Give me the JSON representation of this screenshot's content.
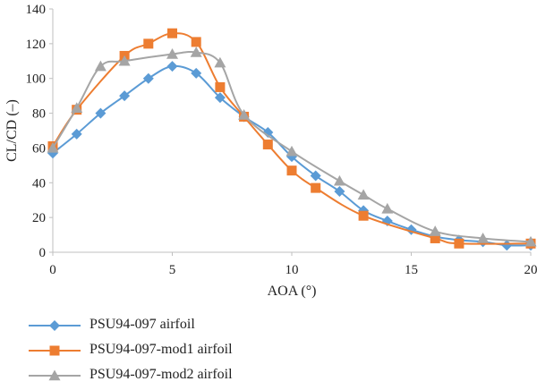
{
  "chart_data": {
    "type": "line",
    "xlabel": "AOA (°)",
    "ylabel": "CL/CD (–)",
    "xlim": [
      0,
      20
    ],
    "ylim": [
      0,
      140
    ],
    "xticks": [
      0,
      5,
      10,
      15,
      20
    ],
    "yticks": [
      0,
      20,
      40,
      60,
      80,
      100,
      120,
      140
    ],
    "grid": false,
    "legend_position": "bottom-left",
    "series": [
      {
        "name": "PSU94-097 airfoil",
        "color": "#5b9bd5",
        "marker": "diamond",
        "x": [
          0,
          1,
          2,
          3,
          4,
          5,
          6,
          7,
          8,
          9,
          10,
          11,
          12,
          13,
          14,
          15,
          16,
          17,
          18,
          19,
          20
        ],
        "y": [
          57,
          68,
          80,
          90,
          100,
          107,
          103,
          89,
          78,
          69,
          55,
          44,
          35,
          24,
          18,
          13,
          9,
          7,
          6,
          4,
          4
        ]
      },
      {
        "name": "PSU94-097-mod1 airfoil",
        "color": "#ed7d31",
        "marker": "square",
        "x": [
          0,
          1,
          3,
          4,
          5,
          6,
          7,
          8,
          9,
          10,
          11,
          13,
          16,
          17,
          20
        ],
        "y": [
          61,
          82,
          113,
          120,
          126,
          121,
          95,
          78,
          62,
          47,
          37,
          21,
          8,
          5,
          5
        ]
      },
      {
        "name": "PSU94-097-mod2 airfoil",
        "color": "#a5a5a5",
        "marker": "triangle",
        "x": [
          0,
          1,
          2,
          3,
          5,
          6,
          7,
          8,
          10,
          12,
          13,
          14,
          16,
          18,
          20
        ],
        "y": [
          60,
          83,
          107,
          110,
          114,
          115,
          109,
          79,
          58,
          41,
          33,
          25,
          12,
          8,
          6
        ]
      }
    ]
  }
}
